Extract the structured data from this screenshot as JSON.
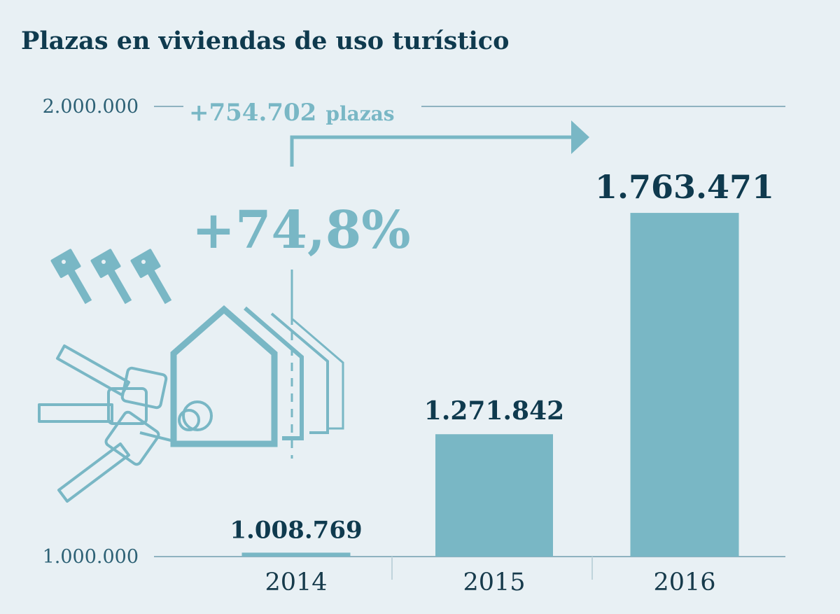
{
  "title": "Plazas en viviendas de uso turístico",
  "colors": {
    "bar": "#79b7c5",
    "text_dark": "#0f3a4e",
    "axis": "#8fb2c0",
    "background": "#e8f0f4",
    "annotation": "#79b7c5"
  },
  "icons": [
    "keys-icon",
    "houses-icon",
    "keychain-icon"
  ],
  "chart_data": {
    "type": "bar",
    "title": "Plazas en viviendas de uso turístico",
    "xlabel": "",
    "ylabel": "",
    "categories": [
      "2014",
      "2015",
      "2016"
    ],
    "values": [
      1008769,
      1271842,
      1763471
    ],
    "value_labels": [
      "1.008.769",
      "1.271.842",
      "1.763.471"
    ],
    "ylim": [
      1000000,
      2000000
    ],
    "yticks": [
      {
        "value": 1000000,
        "label": "1.000.000"
      },
      {
        "value": 2000000,
        "label": "2.000.000"
      }
    ],
    "grid": false,
    "legend": "none",
    "annotations": {
      "absolute_change": "+754.702",
      "absolute_change_unit": "plazas",
      "percent_change": "+74,8%"
    }
  }
}
